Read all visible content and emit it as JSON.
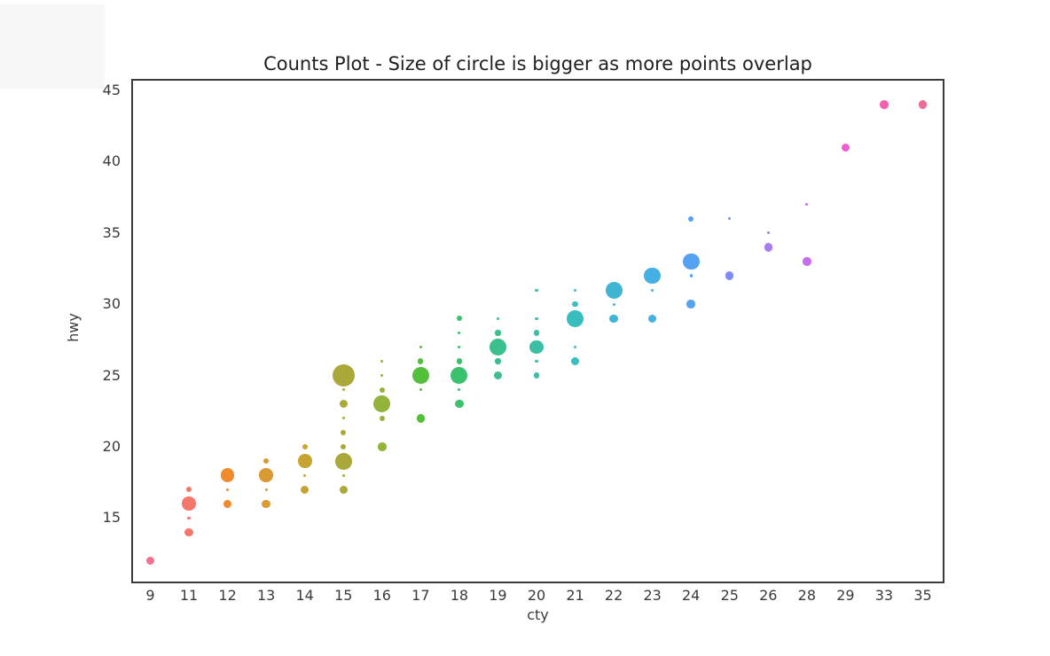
{
  "title": "Counts Plot - Size of circle is bigger as more points overlap",
  "background_color": "#ffffff",
  "spine_color": "#3b3b3b",
  "tick_color": "#3a3a3a",
  "chart_data": {
    "type": "scatter",
    "subtype": "counts-bubble-stripplot",
    "title": "Counts Plot - Size of circle is bigger as more points overlap",
    "xlabel": "cty",
    "ylabel": "hwy",
    "x_categories": [
      9,
      11,
      12,
      13,
      14,
      15,
      16,
      17,
      18,
      19,
      20,
      21,
      22,
      23,
      24,
      25,
      26,
      28,
      29,
      33,
      35
    ],
    "y_ticks": [
      15,
      20,
      25,
      30,
      35,
      40,
      45
    ],
    "ylim": [
      10.4,
      45.8
    ],
    "grid": false,
    "legend": "none",
    "size_rule": "marker diameter proportional to count of overlapping (cty,hwy) points",
    "series": [
      {
        "cty": 9,
        "color": "#f4708e",
        "points": [
          {
            "hwy": 12,
            "count": 3
          }
        ]
      },
      {
        "cty": 11,
        "color": "#f5776b",
        "points": [
          {
            "hwy": 17,
            "count": 2
          },
          {
            "hwy": 16,
            "count": 5
          },
          {
            "hwy": 15,
            "count": 1
          },
          {
            "hwy": 14,
            "count": 3
          }
        ]
      },
      {
        "cty": 12,
        "color": "#ef8b2d",
        "points": [
          {
            "hwy": 18,
            "count": 5
          },
          {
            "hwy": 17,
            "count": 1
          },
          {
            "hwy": 16,
            "count": 3
          }
        ]
      },
      {
        "cty": 13,
        "color": "#db9a31",
        "points": [
          {
            "hwy": 19,
            "count": 2
          },
          {
            "hwy": 18,
            "count": 5
          },
          {
            "hwy": 17,
            "count": 1
          },
          {
            "hwy": 16,
            "count": 3
          }
        ]
      },
      {
        "cty": 14,
        "color": "#c7a432",
        "points": [
          {
            "hwy": 20,
            "count": 2
          },
          {
            "hwy": 19,
            "count": 5
          },
          {
            "hwy": 18,
            "count": 1
          },
          {
            "hwy": 17,
            "count": 3
          }
        ]
      },
      {
        "cty": 15,
        "color": "#aaa838",
        "points": [
          {
            "hwy": 25,
            "count": 8
          },
          {
            "hwy": 24,
            "count": 1
          },
          {
            "hwy": 23,
            "count": 3
          },
          {
            "hwy": 22,
            "count": 1
          },
          {
            "hwy": 21,
            "count": 2
          },
          {
            "hwy": 20,
            "count": 2
          },
          {
            "hwy": 19,
            "count": 6
          },
          {
            "hwy": 18,
            "count": 1
          },
          {
            "hwy": 17,
            "count": 3
          }
        ]
      },
      {
        "cty": 16,
        "color": "#93b33a",
        "points": [
          {
            "hwy": 26,
            "count": 1
          },
          {
            "hwy": 25,
            "count": 1
          },
          {
            "hwy": 24,
            "count": 2
          },
          {
            "hwy": 23,
            "count": 6
          },
          {
            "hwy": 22,
            "count": 2
          },
          {
            "hwy": 20,
            "count": 3
          }
        ]
      },
      {
        "cty": 17,
        "color": "#53c03c",
        "points": [
          {
            "hwy": 27,
            "count": 1
          },
          {
            "hwy": 26,
            "count": 2
          },
          {
            "hwy": 25,
            "count": 6
          },
          {
            "hwy": 24,
            "count": 1
          },
          {
            "hwy": 22,
            "count": 3
          }
        ]
      },
      {
        "cty": 18,
        "color": "#3bc16e",
        "points": [
          {
            "hwy": 29,
            "count": 2
          },
          {
            "hwy": 28,
            "count": 1
          },
          {
            "hwy": 27,
            "count": 1
          },
          {
            "hwy": 26,
            "count": 2
          },
          {
            "hwy": 25,
            "count": 6
          },
          {
            "hwy": 24,
            "count": 1
          },
          {
            "hwy": 23,
            "count": 3
          }
        ]
      },
      {
        "cty": 19,
        "color": "#3ac08d",
        "points": [
          {
            "hwy": 29,
            "count": 1
          },
          {
            "hwy": 28,
            "count": 2
          },
          {
            "hwy": 27,
            "count": 6
          },
          {
            "hwy": 26,
            "count": 2
          },
          {
            "hwy": 25,
            "count": 3
          }
        ]
      },
      {
        "cty": 20,
        "color": "#3bc0a6",
        "points": [
          {
            "hwy": 31,
            "count": 1
          },
          {
            "hwy": 29,
            "count": 1
          },
          {
            "hwy": 28,
            "count": 2
          },
          {
            "hwy": 27,
            "count": 5
          },
          {
            "hwy": 26,
            "count": 1
          },
          {
            "hwy": 25,
            "count": 2
          }
        ]
      },
      {
        "cty": 21,
        "color": "#38bebc",
        "points": [
          {
            "hwy": 31,
            "count": 1
          },
          {
            "hwy": 30,
            "count": 2
          },
          {
            "hwy": 29,
            "count": 6
          },
          {
            "hwy": 27,
            "count": 1
          },
          {
            "hwy": 26,
            "count": 3
          }
        ]
      },
      {
        "cty": 22,
        "color": "#3fb5d3",
        "points": [
          {
            "hwy": 31,
            "count": 6
          },
          {
            "hwy": 30,
            "count": 1
          },
          {
            "hwy": 29,
            "count": 3
          }
        ]
      },
      {
        "cty": 23,
        "color": "#45b0e2",
        "points": [
          {
            "hwy": 32,
            "count": 6
          },
          {
            "hwy": 31,
            "count": 1
          },
          {
            "hwy": 29,
            "count": 3
          }
        ]
      },
      {
        "cty": 24,
        "color": "#56a2f2",
        "points": [
          {
            "hwy": 36,
            "count": 2
          },
          {
            "hwy": 33,
            "count": 6
          },
          {
            "hwy": 32,
            "count": 1
          },
          {
            "hwy": 30,
            "count": 3
          }
        ]
      },
      {
        "cty": 25,
        "color": "#7e8bf4",
        "points": [
          {
            "hwy": 36,
            "count": 1
          },
          {
            "hwy": 32,
            "count": 3
          }
        ]
      },
      {
        "cty": 26,
        "color": "#a57cf2",
        "points": [
          {
            "hwy": 35,
            "count": 1
          },
          {
            "hwy": 34,
            "count": 3
          }
        ]
      },
      {
        "cty": 28,
        "color": "#c76df0",
        "points": [
          {
            "hwy": 37,
            "count": 1
          },
          {
            "hwy": 33,
            "count": 3
          }
        ]
      },
      {
        "cty": 29,
        "color": "#ee5ed4",
        "points": [
          {
            "hwy": 41,
            "count": 3
          }
        ]
      },
      {
        "cty": 33,
        "color": "#f45fae",
        "points": [
          {
            "hwy": 44,
            "count": 3
          }
        ]
      },
      {
        "cty": 35,
        "color": "#f56a92",
        "points": [
          {
            "hwy": 44,
            "count": 3
          }
        ]
      }
    ]
  }
}
